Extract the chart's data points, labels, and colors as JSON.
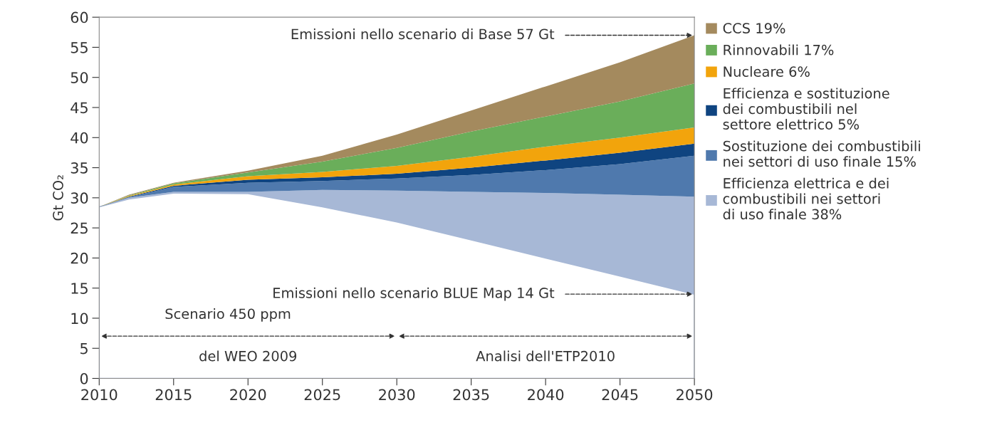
{
  "chart_data": {
    "type": "area",
    "stacked": true,
    "ylabel": "Gt CO₂",
    "x": [
      2010,
      2012,
      2015,
      2020,
      2025,
      2030,
      2035,
      2040,
      2045,
      2050
    ],
    "series": [
      {
        "color": "#ffffff",
        "values": [
          28.5,
          29.8,
          30.8,
          30.7,
          28.5,
          26,
          23,
          20,
          17,
          14
        ]
      },
      {
        "name": "Efficienza elettrica e dei\ncombustibili nei settori\ndi uso finale 38%",
        "color": "#a7b8d6",
        "values": [
          0,
          0.2,
          0.2,
          0.3,
          2.8,
          5.2,
          8,
          10.8,
          13.5,
          16.2
        ]
      },
      {
        "name": "Sostituzione dei combustibili\nnei settori di uso finale 15%",
        "color": "#4f79ad",
        "values": [
          0,
          0.1,
          0.8,
          1.5,
          1.5,
          2,
          2.8,
          3.8,
          5.1,
          6.8
        ]
      },
      {
        "name": "Efficienza e sostituzione\ndei combustibili nel\nsettore elettrico 5%",
        "color": "#0f4480",
        "values": [
          0,
          0.1,
          0.2,
          0.5,
          0.6,
          0.8,
          1.2,
          1.6,
          1.9,
          2.0
        ]
      },
      {
        "name": "Nucleare 6%",
        "color": "#f2a40c",
        "values": [
          0,
          0.1,
          0.2,
          0.6,
          0.9,
          1.3,
          1.8,
          2.3,
          2.5,
          2.7
        ]
      },
      {
        "name": "Rinnovabili 17%",
        "color": "#6aae5a",
        "values": [
          0,
          0.1,
          0.2,
          0.6,
          1.7,
          3,
          4.2,
          5,
          6,
          7.3
        ]
      },
      {
        "name": "CCS 19%",
        "color": "#a48a5e",
        "values": [
          0,
          0.1,
          0.1,
          0.3,
          1,
          2.2,
          3.5,
          5,
          6.5,
          8
        ]
      }
    ],
    "xlim": [
      2010,
      2050
    ],
    "xticks": [
      2010,
      2015,
      2020,
      2025,
      2030,
      2035,
      2040,
      2045,
      2050
    ],
    "ylim": [
      0,
      60
    ],
    "yticks": [
      0,
      5,
      10,
      15,
      20,
      25,
      30,
      35,
      40,
      45,
      50,
      55,
      60
    ],
    "legend": "right",
    "grid": false,
    "annotations": [
      {
        "text": "Emissioni nello scenario di Base 57 Gt",
        "x": 2050,
        "y": 57
      },
      {
        "text": "Emissioni nello scenario BLUE Map 14 Gt",
        "x": 2050,
        "y": 14
      },
      "Scenario 450 ppm",
      "del WEO 2009",
      "Analisi dell'ETP2010"
    ]
  }
}
